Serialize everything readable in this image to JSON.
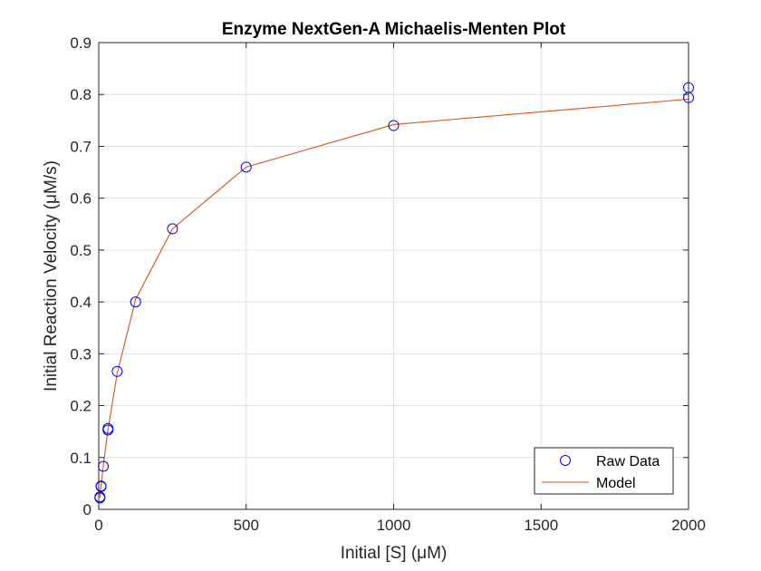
{
  "chart_data": {
    "type": "scatter",
    "title": "Enzyme NextGen-A Michaelis-Menten Plot",
    "xlabel": "Initial [S] (μM)",
    "ylabel": "Initial Reaction Velocity (μM/s)",
    "xlim": [
      0,
      2000
    ],
    "ylim": [
      0,
      0.9
    ],
    "xticks": [
      0,
      500,
      1000,
      1500,
      2000
    ],
    "yticks": [
      0,
      0.1,
      0.2,
      0.3,
      0.4,
      0.5,
      0.6,
      0.7,
      0.8,
      0.9
    ],
    "xtick_labels": [
      "0",
      "500",
      "1000",
      "1500",
      "2000"
    ],
    "ytick_labels": [
      "0",
      "0.1",
      "0.2",
      "0.3",
      "0.4",
      "0.5",
      "0.6",
      "0.7",
      "0.8",
      "0.9"
    ],
    "grid": true,
    "legend_position": "bottom-right",
    "series": [
      {
        "name": "Raw Data",
        "style": "markers",
        "color": "#0000ff",
        "x": [
          3.9,
          3.9,
          7.8,
          7.8,
          15.6,
          31.25,
          31.25,
          62.5,
          125,
          250,
          500,
          1000,
          2000,
          2000
        ],
        "y": [
          0.022,
          0.024,
          0.045,
          0.044,
          0.083,
          0.153,
          0.156,
          0.266,
          0.4,
          0.541,
          0.66,
          0.74,
          0.813,
          0.794
        ]
      },
      {
        "name": "Model",
        "style": "line",
        "color": "#d95319",
        "x": [
          3.9,
          7.8,
          15.6,
          31.25,
          62.5,
          125,
          250,
          500,
          1000,
          2000
        ],
        "y": [
          0.023,
          0.045,
          0.085,
          0.153,
          0.262,
          0.405,
          0.541,
          0.66,
          0.742,
          0.791
        ]
      }
    ]
  }
}
